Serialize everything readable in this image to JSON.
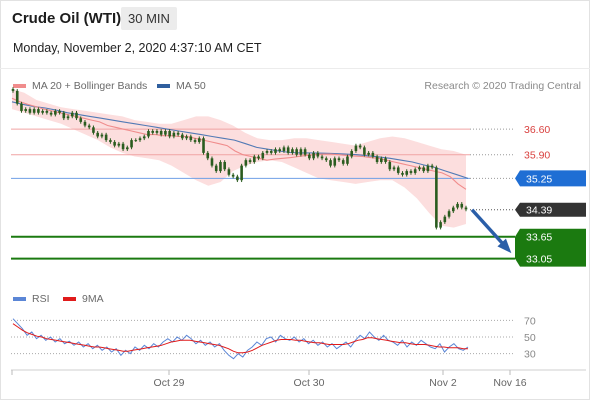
{
  "header": {
    "title": "Crude Oil (WTI)",
    "timeframe": "30 MIN",
    "datetime": "Monday, November 2, 2020 4:37:10 AM CET"
  },
  "price_panel": {
    "legend": [
      {
        "label": "MA 20 + Bollinger Bands",
        "color": "#f08c8c"
      },
      {
        "label": "MA 50",
        "color": "#2f5f9e"
      }
    ],
    "credit": "Research © 2020 Trading Central"
  },
  "rsi_panel": {
    "legend": [
      {
        "label": "RSI",
        "color": "#5b86d6"
      },
      {
        "label": "9MA",
        "color": "#e01b1b"
      }
    ]
  },
  "colors": {
    "resistance": "#d9413f",
    "support": "#1b7a10",
    "pivot": "#1f6ed4",
    "current": "#333333",
    "bollinger": "#fbd6d6",
    "ma20": "#f08c8c",
    "ma50": "#3f6fb0",
    "candle": "#2a5c1f",
    "arrow": "#2a5ea8"
  },
  "chart_data": [
    {
      "type": "candlestick",
      "x_labels": [
        "Oct 29",
        "Oct 30",
        "Nov 2",
        "Nov 16"
      ],
      "ylim": [
        32.6,
        37.4
      ],
      "levels": [
        {
          "value": 36.6,
          "label": "36.60",
          "role": "resistance"
        },
        {
          "value": 35.9,
          "label": "35.90",
          "role": "resistance"
        },
        {
          "value": 35.25,
          "label": "35.25",
          "role": "pivot"
        },
        {
          "value": 34.39,
          "label": "34.39",
          "role": "current"
        },
        {
          "value": 33.65,
          "label": "33.65",
          "role": "support"
        },
        {
          "value": 33.05,
          "label": "33.05",
          "role": "support"
        }
      ],
      "close": [
        37.65,
        37.3,
        37.1,
        37.15,
        37.05,
        37.15,
        37.05,
        37.1,
        37.05,
        37.0,
        37.1,
        37.05,
        36.9,
        36.95,
        37.05,
        36.9,
        36.8,
        36.7,
        36.65,
        36.5,
        36.4,
        36.45,
        36.3,
        36.25,
        36.15,
        36.2,
        36.05,
        36.1,
        36.3,
        36.3,
        36.35,
        36.4,
        36.55,
        36.5,
        36.55,
        36.45,
        36.55,
        36.4,
        36.5,
        36.45,
        36.35,
        36.4,
        36.3,
        36.25,
        36.35,
        35.95,
        35.8,
        35.6,
        35.45,
        35.7,
        35.5,
        35.35,
        35.3,
        35.2,
        35.6,
        35.75,
        35.7,
        35.85,
        35.8,
        35.95,
        36.0,
        35.95,
        36.05,
        36.0,
        36.1,
        35.95,
        36.05,
        35.9,
        36.05,
        35.9,
        35.8,
        35.95,
        35.85,
        35.8,
        35.75,
        35.6,
        35.8,
        35.75,
        35.65,
        35.85,
        36.0,
        36.15,
        36.1,
        35.9,
        35.95,
        35.85,
        35.7,
        35.8,
        35.7,
        35.5,
        35.55,
        35.4,
        35.35,
        35.45,
        35.4,
        35.5,
        35.55,
        35.45,
        35.6,
        35.55,
        33.9,
        34.05,
        34.2,
        34.35,
        34.45,
        34.55,
        34.45,
        34.4
      ],
      "ma20": [
        37.45,
        37.35,
        37.28,
        37.22,
        37.15,
        37.1,
        37.05,
        37.0,
        36.95,
        36.9,
        36.85,
        36.8,
        36.7,
        36.65,
        36.6,
        36.55,
        36.5,
        36.45,
        36.45,
        36.42,
        36.42,
        36.4,
        36.4,
        36.35,
        36.3,
        36.25,
        36.2,
        36.15,
        36.0,
        35.9,
        35.85,
        35.8,
        35.75,
        35.78,
        35.8,
        35.82,
        35.85,
        35.88,
        35.9,
        35.92,
        35.92,
        35.9,
        35.88,
        35.86,
        35.85,
        35.82,
        35.8,
        35.75,
        35.7,
        35.65,
        35.6,
        35.55,
        35.5,
        35.45,
        35.4,
        35.3,
        35.1,
        34.95
      ],
      "ma50": [
        37.35,
        37.28,
        37.22,
        37.18,
        37.12,
        37.05,
        37.0,
        36.95,
        36.9,
        36.85,
        36.8,
        36.75,
        36.7,
        36.65,
        36.6,
        36.55,
        36.5,
        36.45,
        36.4,
        36.35,
        36.3,
        36.2,
        36.1,
        36.05,
        36.0,
        35.96,
        35.95,
        35.95,
        35.94,
        35.93,
        35.92,
        35.9,
        35.87,
        35.84,
        35.8,
        35.75,
        35.7,
        35.62,
        35.55,
        35.45,
        35.35,
        35.25
      ],
      "bb_upper": [
        37.7,
        37.6,
        37.4,
        37.3,
        37.2,
        37.15,
        37.1,
        37.05,
        37.0,
        36.95,
        36.85,
        36.8,
        36.75,
        36.75,
        36.85,
        36.95,
        36.95,
        36.85,
        36.7,
        36.5,
        36.35,
        36.3,
        36.3,
        36.35,
        36.35,
        36.3,
        36.25,
        36.2,
        36.15,
        36.25,
        36.35,
        36.4,
        36.35,
        36.25,
        36.15,
        36.05,
        36.0,
        35.9
      ],
      "bb_lower": [
        37.15,
        37.05,
        36.95,
        36.85,
        36.75,
        36.6,
        36.45,
        36.3,
        36.1,
        35.95,
        35.85,
        35.8,
        35.75,
        35.6,
        35.4,
        35.2,
        35.05,
        35.15,
        35.45,
        35.6,
        35.7,
        35.75,
        35.7,
        35.55,
        35.4,
        35.25,
        35.2,
        35.15,
        35.1,
        35.15,
        35.2,
        35.2,
        35.0,
        34.7,
        34.3,
        33.95,
        33.9,
        34.0
      ],
      "projection": {
        "from": 34.39,
        "to": 33.3
      }
    },
    {
      "type": "line",
      "series": [
        {
          "name": "RSI"
        },
        {
          "name": "9MA"
        }
      ],
      "yticks": [
        70,
        50,
        30
      ],
      "ylim": [
        20,
        80
      ],
      "rsi": [
        72,
        66,
        60,
        52,
        56,
        48,
        52,
        46,
        50,
        44,
        48,
        42,
        45,
        40,
        44,
        38,
        42,
        36,
        40,
        34,
        38,
        32,
        36,
        28,
        34,
        30,
        38,
        34,
        40,
        36,
        42,
        38,
        44,
        48,
        44,
        50,
        46,
        52,
        48,
        42,
        46,
        40,
        44,
        38,
        42,
        34,
        28,
        24,
        30,
        26,
        34,
        38,
        44,
        40,
        48,
        50,
        44,
        52,
        48,
        46,
        50,
        44,
        48,
        42,
        46,
        40,
        44,
        38,
        42,
        36,
        40,
        44,
        38,
        46,
        52,
        48,
        56,
        50,
        46,
        52,
        46,
        44,
        40,
        46,
        38,
        44,
        40,
        46,
        42,
        38,
        36,
        42,
        32,
        38,
        42,
        36,
        34,
        38
      ],
      "ma9": [
        66,
        62,
        58,
        55,
        53,
        51,
        50,
        48,
        47,
        46,
        45,
        44,
        43,
        42,
        41,
        40,
        39,
        38,
        38,
        37,
        36,
        35,
        34,
        33,
        33,
        34,
        35,
        36,
        37,
        38,
        39,
        40,
        42,
        44,
        45,
        46,
        46,
        46,
        45,
        44,
        43,
        42,
        41,
        40,
        38,
        36,
        33,
        31,
        31,
        32,
        34,
        37,
        40,
        42,
        44,
        46,
        47,
        47,
        47,
        46,
        46,
        45,
        44,
        43,
        43,
        42,
        41,
        41,
        41,
        41,
        42,
        44,
        46,
        47,
        49,
        49,
        48,
        47,
        46,
        45,
        44,
        43,
        43,
        42,
        41,
        41,
        41,
        40,
        39,
        38,
        38,
        37,
        37,
        37,
        36,
        36
      ]
    }
  ]
}
